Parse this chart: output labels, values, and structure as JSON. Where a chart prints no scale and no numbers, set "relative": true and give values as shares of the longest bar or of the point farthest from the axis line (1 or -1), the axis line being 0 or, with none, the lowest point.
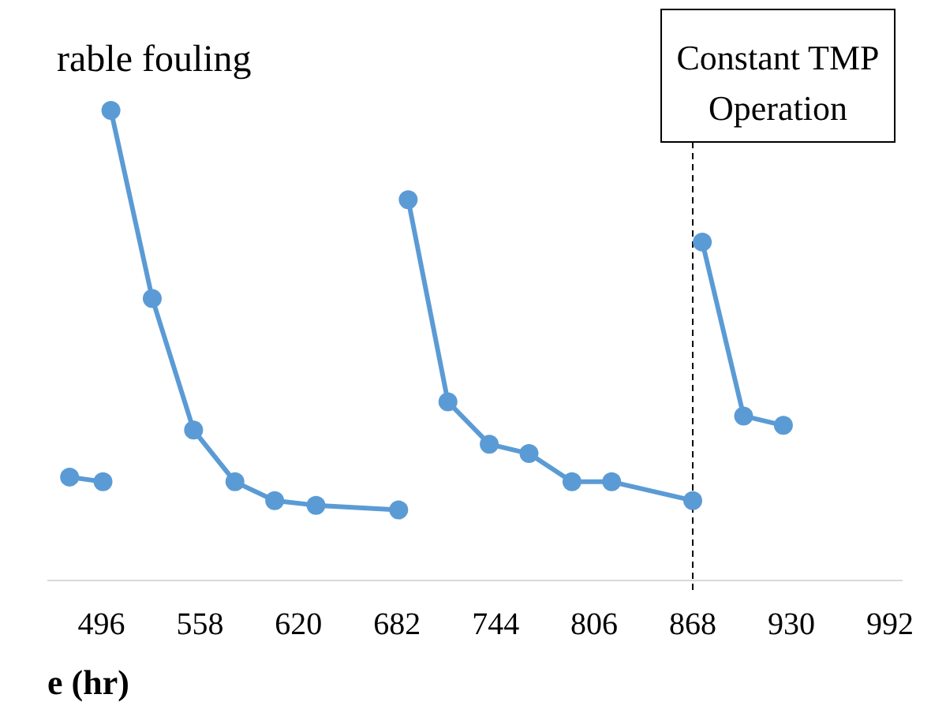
{
  "chart_data": {
    "type": "line",
    "title": "rable fouling",
    "xlabel": "e (hr)",
    "relative": true,
    "marker": "circle",
    "line_style": "solid",
    "xlim": [
      462,
      1000
    ],
    "xticks": [
      496,
      558,
      620,
      682,
      744,
      806,
      868,
      930,
      992
    ],
    "series": [
      {
        "color": "#5b9bd5",
        "x": [
          476,
          497
        ],
        "values": [
          0.22,
          0.21
        ]
      },
      {
        "color": "#5b9bd5",
        "x": [
          502,
          528,
          554,
          580,
          605,
          631,
          683
        ],
        "values": [
          1,
          0.6,
          0.32,
          0.21,
          0.17,
          0.16,
          0.15
        ]
      },
      {
        "color": "#5b9bd5",
        "x": [
          689,
          714,
          740,
          765,
          792,
          817,
          868
        ],
        "values": [
          0.81,
          0.38,
          0.29,
          0.27,
          0.21,
          0.21,
          0.17
        ]
      },
      {
        "color": "#5b9bd5",
        "x": [
          874,
          900,
          925
        ],
        "values": [
          0.72,
          0.35,
          0.33
        ]
      }
    ],
    "ref_lines": [
      {
        "axis": "x",
        "value": 868,
        "label": "Constant TMP Operation",
        "line_style": "dashed",
        "color": "#000000"
      }
    ]
  }
}
